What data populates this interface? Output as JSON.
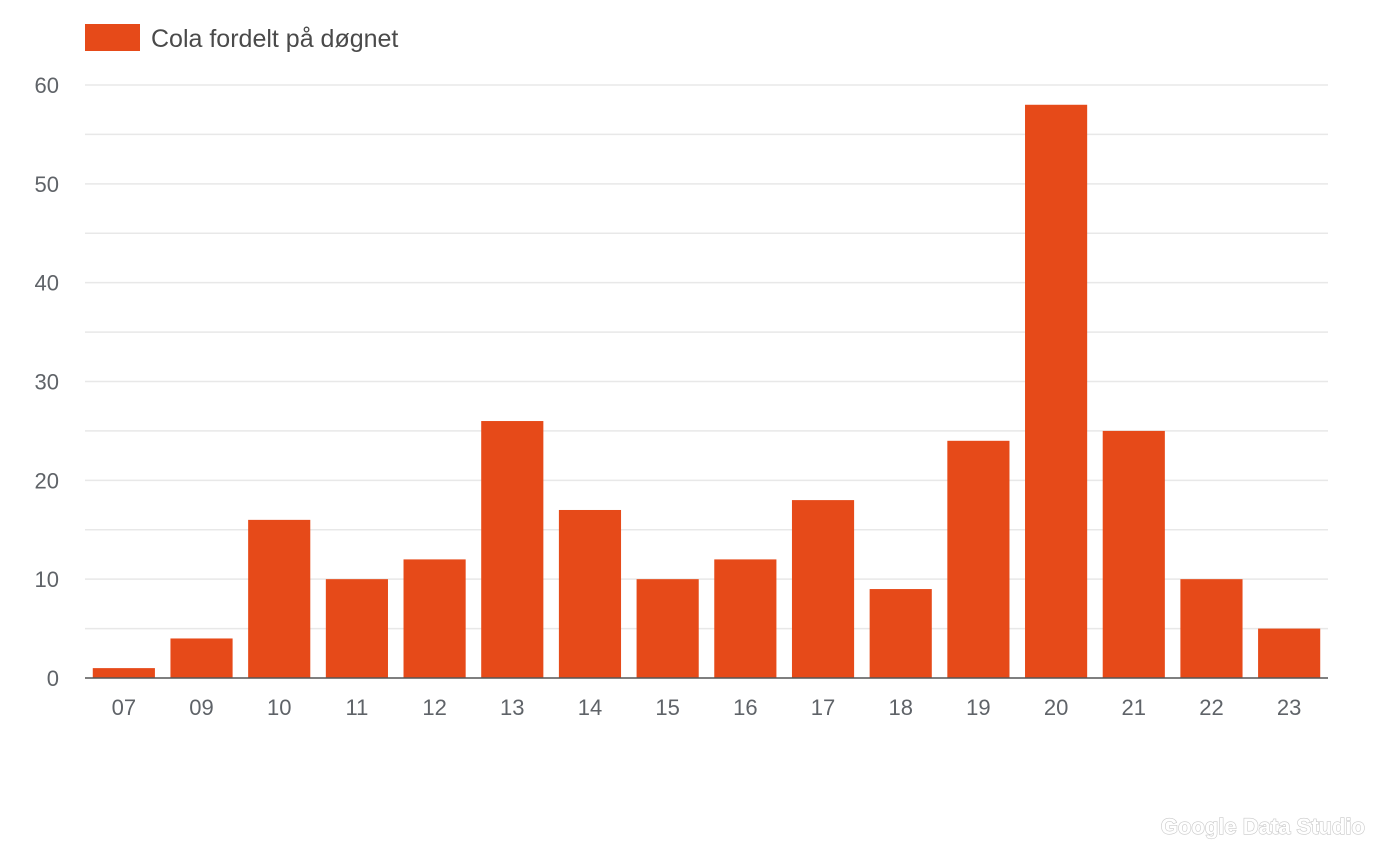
{
  "chart_data": {
    "type": "bar",
    "title": "",
    "xlabel": "",
    "ylabel": "",
    "categories": [
      "07",
      "09",
      "10",
      "11",
      "12",
      "13",
      "14",
      "15",
      "16",
      "17",
      "18",
      "19",
      "20",
      "21",
      "22",
      "23"
    ],
    "series": [
      {
        "name": "Cola fordelt på døgnet",
        "color": "#e64a19",
        "values": [
          1,
          4,
          16,
          10,
          12,
          26,
          17,
          10,
          12,
          18,
          9,
          24,
          58,
          25,
          10,
          5
        ]
      }
    ],
    "ylim": [
      0,
      60
    ],
    "yticks": [
      "0",
      "10",
      "20",
      "30",
      "40",
      "50",
      "60"
    ],
    "grid": true,
    "minor_grid": true,
    "legend_position": "top-left"
  },
  "watermark": {
    "text": "Google Data Studio"
  },
  "colors": {
    "bar": "#e64a19",
    "grid": "#e8e8e8",
    "axis": "#555555",
    "text": "#5f6368"
  }
}
